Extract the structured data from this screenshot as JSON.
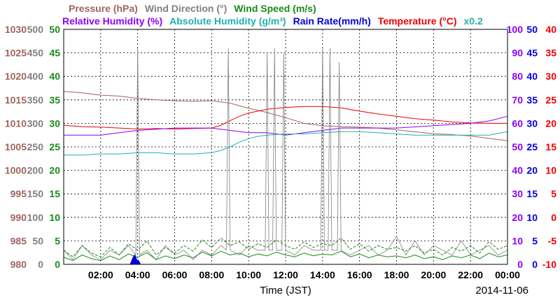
{
  "chart_data": {
    "type": "line",
    "date": "2014-11-06",
    "xlabel": "Time (JST)",
    "x_ticks": [
      "02:00",
      "04:00",
      "06:00",
      "08:00",
      "10:00",
      "12:00",
      "14:00",
      "16:00",
      "18:00",
      "20:00",
      "22:00",
      "00:00"
    ],
    "x_range_hours": [
      0,
      24
    ],
    "grid": true,
    "legend_row1": [
      {
        "text": "Pressure (hPa)",
        "color": "#a0645f"
      },
      {
        "text": "Wind Direction (°)",
        "color": "#808080"
      },
      {
        "text": "Wind Speed (m/s)",
        "color": "#1a8a1a"
      }
    ],
    "legend_row2": [
      {
        "text": "Relative Humidity (%)",
        "color": "#8b00ff"
      },
      {
        "text": "Absolute Humidity (g/m³)",
        "color": "#20b0b0"
      },
      {
        "text": "Rain Rate(mm/h)",
        "color": "#0000dd"
      },
      {
        "text": "Temperature (°C)",
        "color": "#ee0000"
      },
      {
        "text": "x0.2",
        "color": "#20b0b0"
      }
    ],
    "axes": {
      "pressure": {
        "label": "Pressure (hPa)",
        "color": "#a0645f",
        "range": [
          980,
          1030
        ],
        "ticks": [
          "1030",
          "1025",
          "1020",
          "1015",
          "1010",
          "1005",
          "1000",
          "995",
          "990",
          "985",
          "980"
        ]
      },
      "wind_direction": {
        "label": "Wind Direction (°)",
        "color": "#808080",
        "range": [
          0,
          500
        ],
        "ticks": [
          "500",
          "450",
          "400",
          "350",
          "300",
          "250",
          "200",
          "150",
          "100",
          "50",
          "0"
        ]
      },
      "wind_speed": {
        "label": "Wind Speed (m/s)",
        "color": "#1a8a1a",
        "range": [
          0,
          50
        ],
        "ticks": [
          "50",
          "45",
          "40",
          "35",
          "30",
          "25",
          "20",
          "15",
          "10",
          "5",
          "0"
        ]
      },
      "relative_humidity": {
        "label": "Relative Humidity (%)",
        "color": "#8b00ff",
        "range": [
          0,
          100
        ],
        "ticks": [
          "100",
          "90",
          "80",
          "70",
          "60",
          "50",
          "40",
          "30",
          "20",
          "10",
          "0"
        ]
      },
      "rain_rate": {
        "label": "Rain Rate(mm/h)",
        "color": "#0000dd",
        "range": [
          0,
          50
        ],
        "ticks": [
          "50",
          "45",
          "40",
          "35",
          "30",
          "25",
          "20",
          "15",
          "10",
          "5",
          "0"
        ]
      },
      "temperature": {
        "label": "Temperature (°C)",
        "color": "#ee0000",
        "range": [
          -10,
          40
        ],
        "ticks": [
          "40",
          "35",
          "30",
          "25",
          "20",
          "15",
          "10",
          "5",
          "0",
          "-5",
          "-10"
        ]
      }
    },
    "series": [
      {
        "name": "Pressure (hPa)",
        "color": "#a0645f",
        "axis": "pressure",
        "x": [
          0,
          1,
          2,
          3,
          4,
          5,
          6,
          7,
          8,
          9,
          10,
          11,
          12,
          13,
          14,
          15,
          16,
          17,
          18,
          19,
          20,
          21,
          22,
          23,
          24
        ],
        "y": [
          1016.8,
          1016.5,
          1016.0,
          1015.8,
          1015.3,
          1015.0,
          1014.8,
          1014.7,
          1014.8,
          1014.3,
          1013.2,
          1012.3,
          1011.2,
          1010.0,
          1009.5,
          1009.3,
          1009.2,
          1009.0,
          1008.6,
          1008.2,
          1007.8,
          1007.6,
          1007.3,
          1006.8,
          1006.3
        ]
      },
      {
        "name": "Temperature (°C)",
        "color": "#ee0000",
        "axis": "temperature",
        "x": [
          0,
          1,
          2,
          3,
          4,
          5,
          6,
          7,
          8,
          8.5,
          9,
          9.5,
          10,
          10.5,
          11,
          12,
          13,
          14,
          15,
          16,
          17,
          18,
          19,
          20,
          21,
          22,
          23,
          24
        ],
        "y": [
          19.6,
          19.3,
          19.2,
          19.0,
          18.8,
          18.9,
          18.8,
          18.9,
          19.0,
          19.6,
          20.6,
          21.5,
          22.2,
          22.6,
          23.0,
          23.4,
          23.6,
          23.6,
          23.3,
          22.6,
          22.0,
          21.5,
          21.0,
          20.7,
          20.3,
          20.1,
          20.0,
          20.0
        ]
      },
      {
        "name": "Relative Humidity (%)",
        "color": "#8b00ff",
        "axis": "relative_humidity",
        "x": [
          0,
          2,
          3,
          4,
          6,
          8,
          9,
          10,
          11,
          12,
          13,
          14,
          15,
          16,
          18,
          20,
          22,
          23,
          24
        ],
        "y": [
          55,
          55,
          56,
          57,
          58,
          58,
          57,
          56,
          56,
          55,
          56,
          57,
          58,
          58,
          58,
          59,
          60,
          61,
          63
        ]
      },
      {
        "name": "Absolute Humidity (g/m³) x0.2",
        "color": "#20b0b0",
        "axis": "relative_humidity",
        "x": [
          0,
          1,
          2,
          3,
          4,
          5,
          6,
          7,
          8,
          8.5,
          9,
          9.5,
          10,
          10.5,
          11,
          12,
          13,
          14,
          15,
          16,
          17,
          18,
          19,
          20,
          21,
          22,
          23,
          24
        ],
        "y": [
          46.5,
          46.5,
          47.0,
          47.0,
          47.5,
          47.5,
          47.0,
          47.0,
          47.5,
          48.5,
          50.0,
          52.0,
          53.5,
          54.5,
          55.0,
          55.5,
          55.5,
          56.0,
          56.5,
          56.5,
          56.0,
          55.5,
          55.0,
          55.0,
          55.0,
          55.0,
          55.0,
          56.5
        ]
      },
      {
        "name": "Wind Direction (°)",
        "color": "#808080",
        "axis": "wind_direction",
        "x": [
          0,
          0.5,
          1,
          1.5,
          2,
          2.5,
          3,
          3.5,
          3.9,
          4.0,
          4.1,
          4.5,
          5,
          5.5,
          6,
          6.5,
          7,
          7.5,
          8,
          8.5,
          8.8,
          8.9,
          9.0,
          9.5,
          10,
          10.5,
          10.9,
          11.0,
          11.1,
          11.3,
          11.4,
          11.5,
          11.8,
          11.9,
          12.0,
          12.5,
          13,
          13.5,
          13.9,
          14.0,
          14.1,
          14.3,
          14.4,
          14.5,
          14.8,
          14.9,
          15.0,
          15.5,
          16,
          16.5,
          17,
          17.5,
          18,
          18.5,
          19,
          19.5,
          20,
          20.5,
          21,
          21.5,
          22,
          22.5,
          23,
          23.5,
          24
        ],
        "y": [
          30,
          10,
          40,
          20,
          10,
          30,
          20,
          40,
          20,
          460,
          20,
          30,
          10,
          40,
          20,
          30,
          10,
          30,
          20,
          40,
          30,
          460,
          30,
          20,
          40,
          30,
          30,
          450,
          30,
          30,
          460,
          30,
          30,
          450,
          30,
          20,
          40,
          30,
          30,
          460,
          30,
          30,
          460,
          30,
          30,
          430,
          30,
          20,
          30,
          40,
          20,
          30,
          60,
          20,
          50,
          20,
          40,
          30,
          20,
          50,
          20,
          30,
          40,
          20,
          30
        ]
      },
      {
        "name": "Wind Speed (m/s)",
        "color": "#1a8a1a",
        "axis": "wind_speed",
        "x": [
          0,
          0.5,
          1,
          1.5,
          2,
          2.5,
          3,
          3.5,
          4,
          4.5,
          5,
          5.5,
          6,
          6.5,
          7,
          7.5,
          8,
          8.5,
          9,
          9.5,
          10,
          10.5,
          11,
          11.5,
          12,
          12.5,
          13,
          13.5,
          14,
          14.5,
          15,
          15.5,
          16,
          16.5,
          17,
          17.5,
          18,
          18.5,
          19,
          19.5,
          20,
          20.5,
          21,
          21.5,
          22,
          22.5,
          23,
          23.5,
          24
        ],
        "y": [
          1.5,
          0.8,
          2.0,
          1.2,
          0.8,
          1.8,
          1.0,
          2.2,
          1.5,
          2.5,
          1.0,
          1.8,
          1.2,
          2.0,
          1.4,
          2.6,
          1.8,
          2.8,
          2.0,
          2.4,
          1.6,
          2.2,
          1.8,
          2.6,
          2.0,
          1.6,
          2.4,
          1.8,
          2.2,
          2.0,
          2.8,
          1.6,
          2.2,
          1.4,
          2.0,
          1.6,
          1.8,
          1.4,
          2.0,
          1.2,
          1.6,
          1.0,
          1.8,
          1.4,
          2.0,
          1.2,
          2.4,
          1.6,
          2.0
        ]
      },
      {
        "name": "Rain Rate(mm/h)",
        "color": "#0000dd",
        "axis": "rain_rate",
        "x": [
          0,
          3.6,
          3.75,
          3.85,
          3.95,
          4.05,
          4.15,
          24
        ],
        "y": [
          0,
          0,
          1.5,
          2.0,
          1.0,
          0.8,
          0,
          0
        ]
      }
    ]
  }
}
